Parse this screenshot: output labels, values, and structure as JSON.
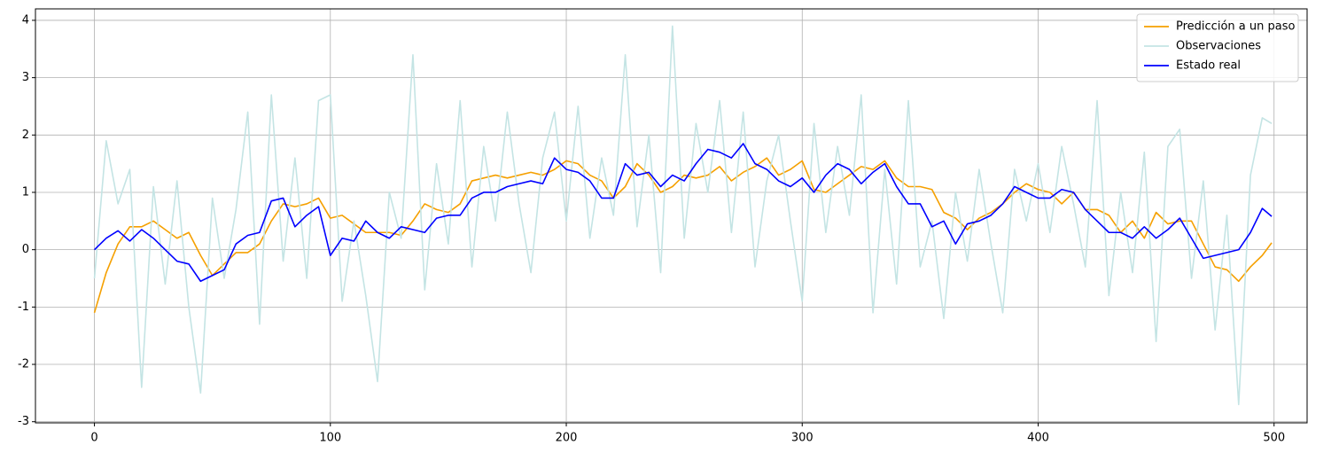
{
  "chart_data": {
    "type": "line",
    "x": [
      0,
      5,
      10,
      15,
      20,
      25,
      30,
      35,
      40,
      45,
      50,
      55,
      60,
      65,
      70,
      75,
      80,
      85,
      90,
      95,
      100,
      105,
      110,
      115,
      120,
      125,
      130,
      135,
      140,
      145,
      150,
      155,
      160,
      165,
      170,
      175,
      180,
      185,
      190,
      195,
      200,
      205,
      210,
      215,
      220,
      225,
      230,
      235,
      240,
      245,
      250,
      255,
      260,
      265,
      270,
      275,
      280,
      285,
      290,
      295,
      300,
      305,
      310,
      315,
      320,
      325,
      330,
      335,
      340,
      345,
      350,
      355,
      360,
      365,
      370,
      375,
      380,
      385,
      390,
      395,
      400,
      405,
      410,
      415,
      420,
      425,
      430,
      435,
      440,
      445,
      450,
      455,
      460,
      465,
      470,
      475,
      480,
      485,
      490,
      495,
      499
    ],
    "series": [
      {
        "name": "Predicción a un paso",
        "color": "#f5a000",
        "values": [
          -1.1,
          -0.4,
          0.1,
          0.4,
          0.4,
          0.5,
          0.35,
          0.2,
          0.3,
          -0.1,
          -0.45,
          -0.25,
          -0.05,
          -0.05,
          0.1,
          0.5,
          0.8,
          0.75,
          0.8,
          0.9,
          0.55,
          0.6,
          0.45,
          0.3,
          0.3,
          0.3,
          0.25,
          0.5,
          0.8,
          0.7,
          0.65,
          0.8,
          1.2,
          1.25,
          1.3,
          1.25,
          1.3,
          1.35,
          1.3,
          1.4,
          1.55,
          1.5,
          1.3,
          1.2,
          0.9,
          1.1,
          1.5,
          1.3,
          1.0,
          1.1,
          1.3,
          1.25,
          1.3,
          1.45,
          1.2,
          1.35,
          1.45,
          1.6,
          1.3,
          1.4,
          1.55,
          1.05,
          1.0,
          1.15,
          1.3,
          1.45,
          1.4,
          1.55,
          1.25,
          1.1,
          1.1,
          1.05,
          0.65,
          0.55,
          0.35,
          0.55,
          0.65,
          0.8,
          1.0,
          1.15,
          1.05,
          1.0,
          0.8,
          1.0,
          0.7,
          0.7,
          0.6,
          0.3,
          0.5,
          0.2,
          0.65,
          0.45,
          0.5,
          0.5,
          0.1,
          -0.3,
          -0.35,
          -0.55,
          -0.3,
          -0.1,
          0.12
        ]
      },
      {
        "name": "Observaciones",
        "color": "#c4e4e4",
        "values": [
          -0.5,
          1.9,
          0.8,
          1.4,
          -2.4,
          1.1,
          -0.6,
          1.2,
          -1.0,
          -2.5,
          0.9,
          -0.5,
          0.7,
          2.4,
          -1.3,
          2.7,
          -0.2,
          1.6,
          -0.5,
          2.6,
          2.7,
          -0.9,
          0.5,
          -0.8,
          -2.3,
          1.0,
          0.2,
          3.4,
          -0.7,
          1.5,
          0.1,
          2.6,
          -0.3,
          1.8,
          0.5,
          2.4,
          0.8,
          -0.4,
          1.6,
          2.4,
          0.5,
          2.5,
          0.2,
          1.6,
          0.6,
          3.4,
          0.4,
          2.0,
          -0.4,
          3.9,
          0.2,
          2.2,
          1.0,
          2.6,
          0.3,
          2.4,
          -0.3,
          1.2,
          2.0,
          0.5,
          -0.9,
          2.2,
          0.3,
          1.8,
          0.6,
          2.7,
          -1.1,
          1.4,
          -0.6,
          2.6,
          -0.3,
          0.5,
          -1.2,
          1.0,
          -0.2,
          1.4,
          0.1,
          -1.1,
          1.4,
          0.5,
          1.5,
          0.3,
          1.8,
          0.8,
          -0.3,
          2.6,
          -0.8,
          1.0,
          -0.4,
          1.7,
          -1.6,
          1.8,
          2.1,
          -0.5,
          1.2,
          -1.4,
          0.6,
          -2.7,
          1.3,
          2.3,
          2.2
        ]
      },
      {
        "name": "Estado real",
        "color": "#0000ff",
        "values": [
          0.0,
          0.2,
          0.33,
          0.15,
          0.35,
          0.2,
          0.0,
          -0.2,
          -0.25,
          -0.55,
          -0.45,
          -0.35,
          0.1,
          0.25,
          0.3,
          0.85,
          0.9,
          0.4,
          0.6,
          0.75,
          -0.1,
          0.2,
          0.15,
          0.5,
          0.3,
          0.2,
          0.4,
          0.35,
          0.3,
          0.55,
          0.6,
          0.6,
          0.9,
          1.0,
          1.0,
          1.1,
          1.15,
          1.2,
          1.15,
          1.6,
          1.4,
          1.35,
          1.2,
          0.9,
          0.9,
          1.5,
          1.3,
          1.35,
          1.1,
          1.3,
          1.2,
          1.5,
          1.75,
          1.7,
          1.6,
          1.85,
          1.5,
          1.4,
          1.2,
          1.1,
          1.25,
          1.0,
          1.3,
          1.5,
          1.4,
          1.15,
          1.35,
          1.5,
          1.1,
          0.8,
          0.8,
          0.4,
          0.5,
          0.1,
          0.45,
          0.5,
          0.6,
          0.8,
          1.1,
          1.0,
          0.9,
          0.9,
          1.05,
          1.0,
          0.7,
          0.5,
          0.3,
          0.3,
          0.2,
          0.4,
          0.2,
          0.35,
          0.55,
          0.2,
          -0.15,
          -0.1,
          -0.05,
          0.0,
          0.3,
          0.72,
          0.58
        ]
      }
    ],
    "xlim": [
      -25,
      514
    ],
    "ylim": [
      -3.02,
      4.2
    ],
    "xticks": [
      0,
      100,
      200,
      300,
      400,
      500
    ],
    "yticks": [
      -3,
      -2,
      -1,
      0,
      1,
      2,
      3,
      4
    ],
    "grid": true,
    "legend": "upper right"
  }
}
